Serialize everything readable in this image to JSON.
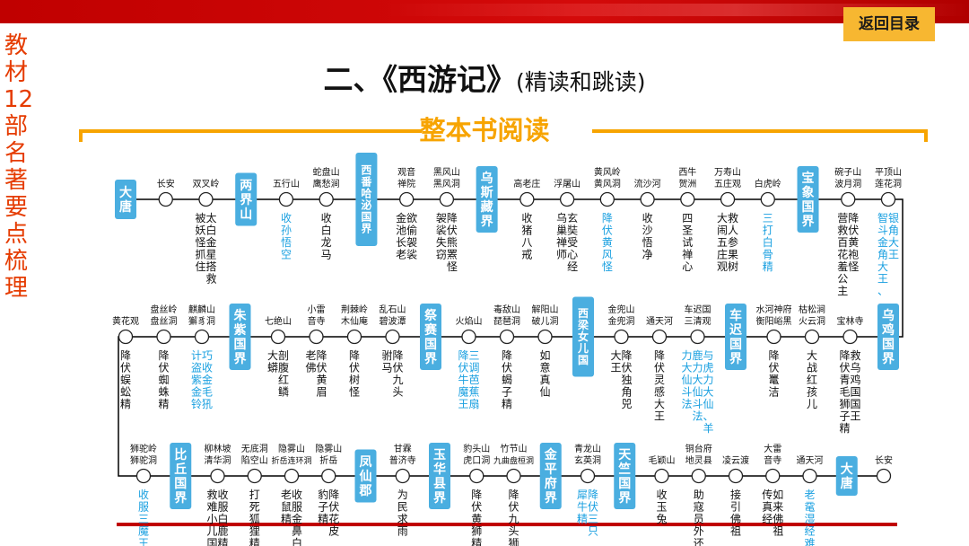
{
  "side_title": "教材12部名著要点梳理",
  "back_button": "返回目录",
  "title": "二、《西游记》",
  "title_sub": "(精读和跳读)",
  "subtitle": "整本书阅读",
  "colors": {
    "accent": "#c00000",
    "realm": "#4aaee0",
    "highlight": "#1aa0e0",
    "gold": "#f7a400",
    "button": "#f7b731"
  },
  "rows": [
    {
      "direction": "ltr",
      "items": [
        {
          "kind": "realm",
          "text": "大唐"
        },
        {
          "kind": "stop",
          "place": [
            "长安"
          ],
          "event": ""
        },
        {
          "kind": "stop",
          "place": [
            "双叉岭"
          ],
          "event": "太白金星搭救|被妖怪抓住"
        },
        {
          "kind": "realm",
          "text": "两界山"
        },
        {
          "kind": "stop",
          "place": [
            "五行山"
          ],
          "event": "收孙悟空",
          "hl": true
        },
        {
          "kind": "stop",
          "place": [
            "蛇盘山",
            "鹰愁涧"
          ],
          "event": "收白龙马"
        },
        {
          "kind": "realm",
          "text": "西番哈泌国界"
        },
        {
          "kind": "stop",
          "place": [
            "观音",
            "禅院"
          ],
          "event": "欲偷袈裟|金池长老"
        },
        {
          "kind": "stop",
          "place": [
            "黑风山",
            "黑风洞"
          ],
          "event": "降伏熊罴怪|袈裟失窃"
        },
        {
          "kind": "realm",
          "text": "乌斯藏界"
        },
        {
          "kind": "stop",
          "place": [
            "高老庄"
          ],
          "event": "收猪八戒"
        },
        {
          "kind": "stop",
          "place": [
            "浮屠山"
          ],
          "event": "玄奘受心经|乌巢禅师"
        },
        {
          "kind": "stop",
          "place": [
            "黄风岭",
            "黄风洞"
          ],
          "event": "降伏黄风怪",
          "hl": true
        },
        {
          "kind": "stop",
          "place": [
            "流沙河"
          ],
          "event": "收沙悟净"
        },
        {
          "kind": "stop",
          "place": [
            "西牛",
            "贺洲"
          ],
          "event": "四圣试禅心"
        },
        {
          "kind": "stop",
          "place": [
            "万寿山",
            "五庄观"
          ],
          "event": "救人参果树|大闹五庄观"
        },
        {
          "kind": "stop",
          "place": [
            "白虎岭"
          ],
          "event": "三打白骨精",
          "hl": true
        },
        {
          "kind": "realm",
          "text": "宝象国界"
        },
        {
          "kind": "stop",
          "place": [
            "碗子山",
            "波月洞"
          ],
          "event": "降伏黄袍怪|营救百花羞公主"
        },
        {
          "kind": "stop",
          "place": [
            "平顶山",
            "莲花洞"
          ],
          "event": "银角大王|智斗金角大王、",
          "hl": true
        }
      ]
    },
    {
      "direction": "rtl",
      "items": [
        {
          "kind": "realm",
          "text": "乌鸡国界"
        },
        {
          "kind": "stop",
          "place": [
            "宝林寺"
          ],
          "event": "救乌鸡国国王|降伏青毛狮子精"
        },
        {
          "kind": "stop",
          "place": [
            "枯松涧",
            "火云洞"
          ],
          "event": "大战红孩儿"
        },
        {
          "kind": "stop",
          "place": [
            "水河神府",
            "衡阳峪黑"
          ],
          "event": "降伏鼍洁"
        },
        {
          "kind": "realm",
          "text": "车迟国界"
        },
        {
          "kind": "stop",
          "place": [
            "车迟国",
            "三清观"
          ],
          "event": "与虎力大仙、羊|鹿力大仙斗法|力大仙斗法",
          "hl": true
        },
        {
          "kind": "stop",
          "place": [
            "通天河"
          ],
          "event": "降伏灵感大王"
        },
        {
          "kind": "stop",
          "place": [
            "金兜山",
            "金兜洞"
          ],
          "event": "降伏独角兕|大王"
        },
        {
          "kind": "realm",
          "text": "西梁女儿国"
        },
        {
          "kind": "stop",
          "place": [
            "解阳山",
            "破儿洞"
          ],
          "event": "如意真仙"
        },
        {
          "kind": "stop",
          "place": [
            "毒敌山",
            "琵琶洞"
          ],
          "event": "降伏蝎子精"
        },
        {
          "kind": "stop",
          "place": [
            "火焰山"
          ],
          "event": "三调芭蕉扇|降伏牛魔王",
          "hl": true
        },
        {
          "kind": "realm",
          "text": "祭赛国界"
        },
        {
          "kind": "stop",
          "place": [
            "乱石山",
            "碧波潭"
          ],
          "event": "降伏九头|驸马"
        },
        {
          "kind": "stop",
          "place": [
            "荆棘岭",
            "木仙庵"
          ],
          "event": "降伏树怪"
        },
        {
          "kind": "stop",
          "place": [
            "小雷",
            "音寺"
          ],
          "event": "降伏黄眉|老佛"
        },
        {
          "kind": "stop",
          "place": [
            "七绝山"
          ],
          "event": "剖腹红鳞|大蟒"
        },
        {
          "kind": "realm",
          "text": "朱紫国界"
        },
        {
          "kind": "stop",
          "place": [
            "麒麟山",
            "獬豸洞"
          ],
          "event": "巧收金毛犼|计盗紫金铃",
          "hl": true
        },
        {
          "kind": "stop",
          "place": [
            "盘丝岭",
            "盘丝洞"
          ],
          "event": "降伏蜘蛛精"
        },
        {
          "kind": "stop",
          "place": [
            "黄花观"
          ],
          "event": "降伏蜈蚣精"
        }
      ]
    },
    {
      "direction": "ltr",
      "items": [
        {
          "kind": "stop",
          "place": [
            "狮驼岭",
            "狮驼洞"
          ],
          "event": "收服三魔王",
          "hl": true
        },
        {
          "kind": "realm",
          "text": "比丘国界"
        },
        {
          "kind": "stop",
          "place": [
            "柳林坡",
            "清华洞"
          ],
          "event": "收服白鹿精|救难小儿国"
        },
        {
          "kind": "stop",
          "place": [
            "无底洞",
            "陷空山"
          ],
          "event": "打死狐狸精"
        },
        {
          "kind": "stop",
          "place": [
            "隐雾山",
            "折岳连环洞"
          ],
          "event": "收服金鼻白|老鼠精"
        },
        {
          "kind": "stop",
          "place": [
            "隐雾山",
            "折岳"
          ],
          "event": "降伏花皮|豹子精"
        },
        {
          "kind": "realm",
          "text": "凤仙郡"
        },
        {
          "kind": "stop",
          "place": [
            "甘霖",
            "普济寺"
          ],
          "event": "为民求雨"
        },
        {
          "kind": "realm",
          "text": "玉华县界"
        },
        {
          "kind": "stop",
          "place": [
            "豹头山",
            "虎口洞"
          ],
          "event": "降伏黄狮精"
        },
        {
          "kind": "stop",
          "place": [
            "竹节山",
            "九曲盘桓洞"
          ],
          "event": "降伏九头狮"
        },
        {
          "kind": "realm",
          "text": "金平府界"
        },
        {
          "kind": "stop",
          "place": [
            "青龙山",
            "玄英洞"
          ],
          "event": "降伏三只|犀牛精",
          "hl": true
        },
        {
          "kind": "realm",
          "text": "天竺国界"
        },
        {
          "kind": "stop",
          "place": [
            "毛颖山"
          ],
          "event": "收玉兔"
        },
        {
          "kind": "stop",
          "place": [
            "铜台府",
            "地灵县"
          ],
          "event": "助寇员外还魂"
        },
        {
          "kind": "stop",
          "place": [
            "凌云渡"
          ],
          "event": "接引佛祖"
        },
        {
          "kind": "stop",
          "place": [
            "大雷",
            "音寺"
          ],
          "event": "如来佛祖|传真经"
        },
        {
          "kind": "stop",
          "place": [
            "通天河"
          ],
          "event": "老鼋湿经难",
          "hl": true
        },
        {
          "kind": "realm",
          "text": "大唐"
        },
        {
          "kind": "stop",
          "place": [
            "长安"
          ],
          "event": ""
        }
      ]
    }
  ]
}
